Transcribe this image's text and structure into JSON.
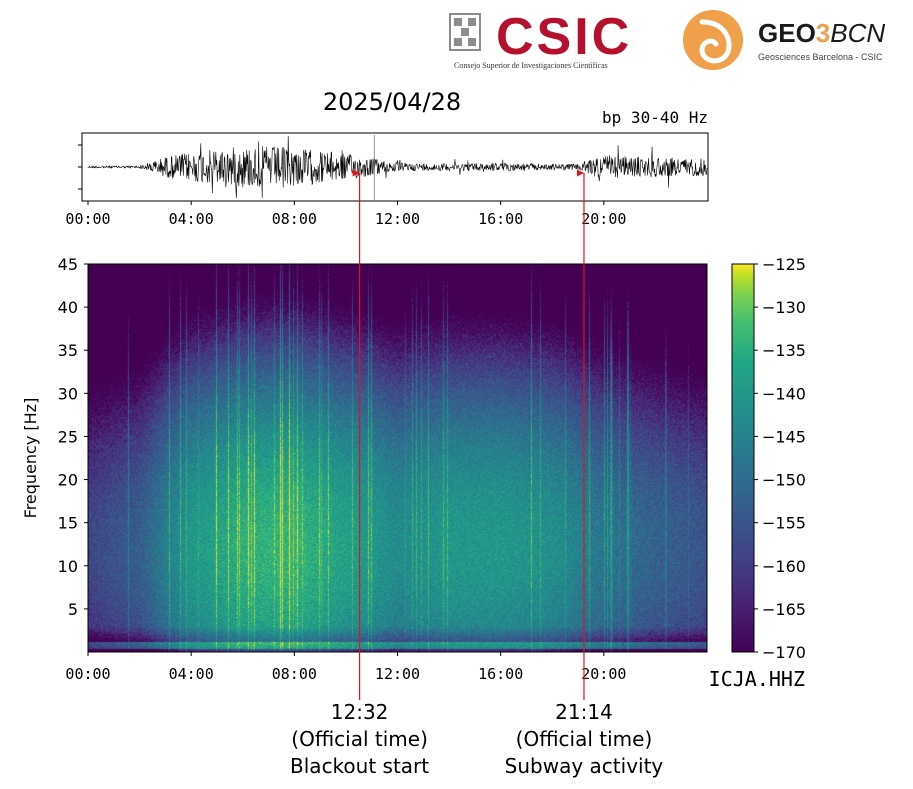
{
  "logos": {
    "csic": {
      "name": "CSIC",
      "subtitle": "Consejo Superior de Investigaciones Científicas",
      "color": "#b5112f"
    },
    "geo3bcn": {
      "name_bold": "GEO",
      "name_3": "3",
      "name_italic": "BCN",
      "subtitle": "Geosciences Barcelona - CSIC",
      "color": "#f0a04b"
    }
  },
  "date_title": "2025/04/28",
  "filter_label": "bp  30-40 Hz",
  "station_label": "ICJA.HHZ",
  "chart_data": [
    {
      "type": "line",
      "panel": "seismogram",
      "x_ticks": [
        "00:00",
        "04:00",
        "08:00",
        "12:00",
        "16:00",
        "20:00"
      ],
      "xlim_hours": [
        0,
        24
      ],
      "amplitude_profile": {
        "hours": [
          0,
          2,
          2.5,
          3,
          4,
          5,
          6,
          7,
          8,
          9,
          10,
          11,
          12,
          13,
          14,
          15,
          16,
          17,
          18,
          19,
          19.5,
          20,
          21,
          22,
          23,
          24
        ],
        "relative_amplitude": [
          0.03,
          0.04,
          0.2,
          0.35,
          0.5,
          0.6,
          0.7,
          0.7,
          0.65,
          0.55,
          0.45,
          0.3,
          0.15,
          0.12,
          0.12,
          0.13,
          0.14,
          0.12,
          0.1,
          0.1,
          0.3,
          0.4,
          0.35,
          0.35,
          0.3,
          0.3
        ]
      }
    },
    {
      "type": "heatmap",
      "panel": "spectrogram",
      "ylabel": "Frequency [Hz]",
      "x_ticks": [
        "00:00",
        "04:00",
        "08:00",
        "12:00",
        "16:00",
        "20:00"
      ],
      "y_ticks": [
        5,
        10,
        15,
        20,
        25,
        30,
        35,
        40,
        45
      ],
      "xlim_hours": [
        0,
        24
      ],
      "ylim_hz": [
        0,
        45
      ],
      "colorbar": {
        "ticks": [
          "−125",
          "−130",
          "−135",
          "−140",
          "−145",
          "−150",
          "−155",
          "−160",
          "−165",
          "−170"
        ],
        "range_db": [
          -170,
          -125
        ],
        "colormap": "viridis"
      },
      "energy_profile": {
        "hours": [
          0,
          2,
          3,
          4,
          6,
          8,
          10,
          11,
          12,
          14,
          16,
          18,
          20,
          22,
          24
        ],
        "level_db": [
          -158,
          -153,
          -146,
          -140,
          -135,
          -134,
          -138,
          -140,
          -143,
          -140,
          -140,
          -142,
          -148,
          -152,
          -155
        ]
      }
    }
  ],
  "annotations": [
    {
      "time_hours": 10.53,
      "label_time": "12:32",
      "label_line2": "(Official time)",
      "label_line3": "Blackout start"
    },
    {
      "time_hours": 19.23,
      "label_time": "21:14",
      "label_line2": "(Official time)",
      "label_line3": "Subway activity"
    }
  ],
  "colors": {
    "arrow": "#e0141e",
    "trace": "#000000"
  }
}
